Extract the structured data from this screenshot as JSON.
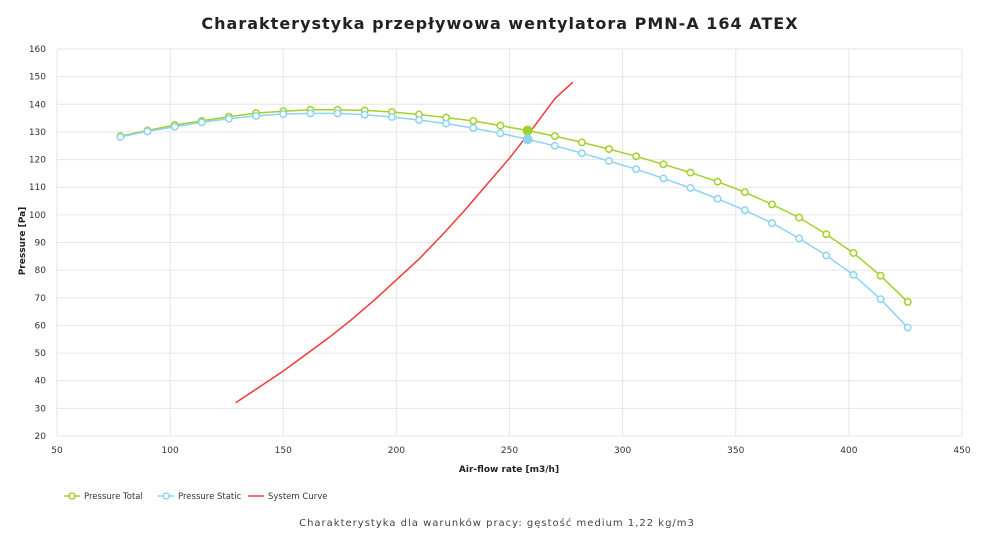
{
  "chart_data": {
    "type": "line",
    "title": "Charakterystyka przepływowa wentylatora PMN-A 164 ATEX",
    "subtitle": "Charakterystyka dla warunków pracy: gęstość medium 1,22 kg/m3",
    "xlabel": "Air-flow rate [m3/h]",
    "ylabel": "Pressure [Pa]",
    "xlim": [
      50,
      450
    ],
    "ylim": [
      20,
      160
    ],
    "x_ticks": [
      50,
      100,
      150,
      200,
      250,
      300,
      350,
      400,
      450
    ],
    "y_ticks": [
      20,
      30,
      40,
      50,
      60,
      70,
      80,
      90,
      100,
      110,
      120,
      130,
      140,
      150,
      160
    ],
    "grid": true,
    "legend_position": "bottom-left",
    "series": [
      {
        "name": "Pressure Total",
        "color": "#a3d12a",
        "marker": "circle",
        "points": [
          [
            78,
            128.5
          ],
          [
            90,
            130.5
          ],
          [
            102,
            132.5
          ],
          [
            114,
            134
          ],
          [
            126,
            135.5
          ],
          [
            138,
            136.8
          ],
          [
            150,
            137.5
          ],
          [
            162,
            138
          ],
          [
            174,
            138
          ],
          [
            186,
            137.8
          ],
          [
            198,
            137.2
          ],
          [
            210,
            136.3
          ],
          [
            222,
            135.2
          ],
          [
            234,
            134
          ],
          [
            246,
            132.3
          ],
          [
            258,
            130.5
          ],
          [
            270,
            128.5
          ],
          [
            282,
            126.2
          ],
          [
            294,
            123.8
          ],
          [
            306,
            121.2
          ],
          [
            318,
            118.3
          ],
          [
            330,
            115.3
          ],
          [
            342,
            112
          ],
          [
            354,
            108.2
          ],
          [
            366,
            103.8
          ],
          [
            378,
            99
          ],
          [
            390,
            93
          ],
          [
            402,
            86.2
          ],
          [
            414,
            78
          ],
          [
            426,
            68.5
          ]
        ]
      },
      {
        "name": "Pressure Static",
        "color": "#8dd3f4",
        "marker": "circle",
        "points": [
          [
            78,
            128.2
          ],
          [
            90,
            130.2
          ],
          [
            102,
            131.9
          ],
          [
            114,
            133.5
          ],
          [
            126,
            134.8
          ],
          [
            138,
            135.8
          ],
          [
            150,
            136.5
          ],
          [
            162,
            136.7
          ],
          [
            174,
            136.7
          ],
          [
            186,
            136.2
          ],
          [
            198,
            135.4
          ],
          [
            210,
            134.3
          ],
          [
            222,
            133
          ],
          [
            234,
            131.4
          ],
          [
            246,
            129.5
          ],
          [
            258,
            127.3
          ],
          [
            270,
            125
          ],
          [
            282,
            122.3
          ],
          [
            294,
            119.5
          ],
          [
            306,
            116.5
          ],
          [
            318,
            113.2
          ],
          [
            330,
            109.7
          ],
          [
            342,
            105.8
          ],
          [
            354,
            101.7
          ],
          [
            366,
            97
          ],
          [
            378,
            91.5
          ],
          [
            390,
            85.3
          ],
          [
            402,
            78.3
          ],
          [
            414,
            69.5
          ],
          [
            426,
            59.2
          ]
        ]
      },
      {
        "name": "System Curve",
        "color": "#f03a3a",
        "marker": "none",
        "x": [
          129,
          140,
          150,
          160,
          170,
          180,
          190,
          200,
          210,
          220,
          230,
          240,
          250,
          260,
          270,
          278
        ],
        "y": [
          32,
          38,
          43.5,
          49.5,
          55.5,
          62,
          69,
          76.5,
          84,
          92.5,
          101.5,
          111,
          120.5,
          131,
          142,
          148
        ]
      }
    ],
    "operating_point": {
      "x": 258,
      "y_total": 130.5,
      "y_static": 127.3
    }
  }
}
